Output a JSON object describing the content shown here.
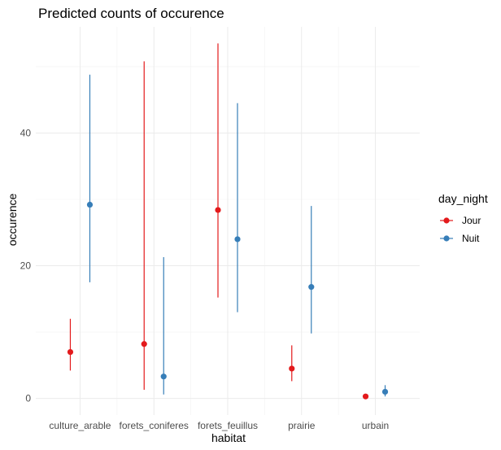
{
  "chart_data": {
    "type": "scatter",
    "title": "Predicted counts of occurence",
    "xlabel": "habitat",
    "ylabel": "occurence",
    "categories": [
      "culture_arable",
      "forets_coniferes",
      "forets_feuillus",
      "prairie",
      "urbain"
    ],
    "yticks": [
      0,
      20,
      40
    ],
    "ylim": [
      -2.5,
      56
    ],
    "grid": true,
    "legend": {
      "title": "day_night",
      "position": "right",
      "entries": [
        "Jour",
        "Nuit"
      ]
    },
    "series": [
      {
        "name": "Jour",
        "color": "#E31A1C",
        "values": [
          7.0,
          8.2,
          28.4,
          4.5,
          0.3
        ],
        "lower": [
          4.2,
          1.3,
          15.2,
          2.6,
          0.1
        ],
        "upper": [
          12.0,
          50.8,
          53.5,
          8.0,
          0.6
        ]
      },
      {
        "name": "Nuit",
        "color": "#377EB8",
        "values": [
          29.2,
          3.3,
          24.0,
          16.8,
          1.0
        ],
        "lower": [
          17.5,
          0.6,
          13.0,
          9.8,
          0.3
        ],
        "upper": [
          48.8,
          21.3,
          44.5,
          29.0,
          2.0
        ]
      }
    ]
  }
}
